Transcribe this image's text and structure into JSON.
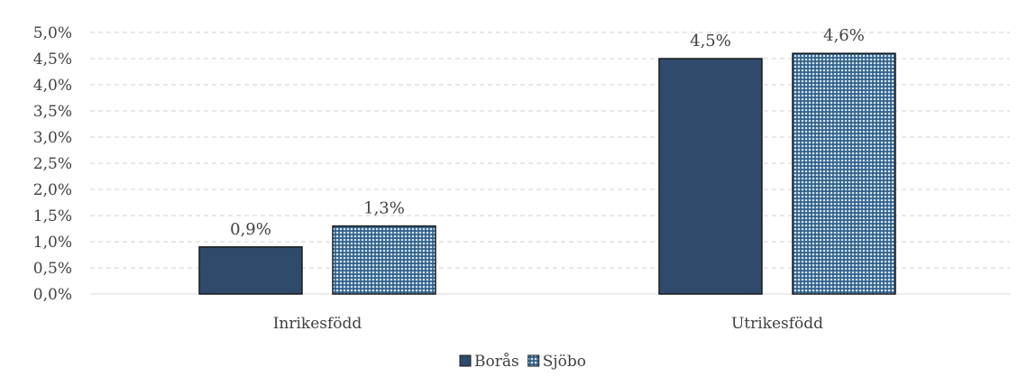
{
  "chart_data": {
    "type": "bar",
    "categories": [
      "Inrikesfödd",
      "Utrikesfödd"
    ],
    "series": [
      {
        "name": "Borås",
        "values": [
          0.9,
          4.5
        ],
        "labels": [
          "0,9%",
          "4,5%"
        ],
        "color": "#2f4a6b",
        "pattern": "solid"
      },
      {
        "name": "Sjöbo",
        "values": [
          1.3,
          4.6
        ],
        "labels": [
          "1,3%",
          "4,6%"
        ],
        "color": "#9dc3e6",
        "pattern": "dotted"
      }
    ],
    "title": "",
    "xlabel": "",
    "ylabel": "",
    "ylim": [
      0,
      5
    ],
    "yticks": [
      "0,0%",
      "0,5%",
      "1,0%",
      "1,5%",
      "2,0%",
      "2,5%",
      "3,0%",
      "3,5%",
      "4,0%",
      "4,5%",
      "5,0%"
    ],
    "grid": true,
    "legend_position": "bottom-center"
  }
}
